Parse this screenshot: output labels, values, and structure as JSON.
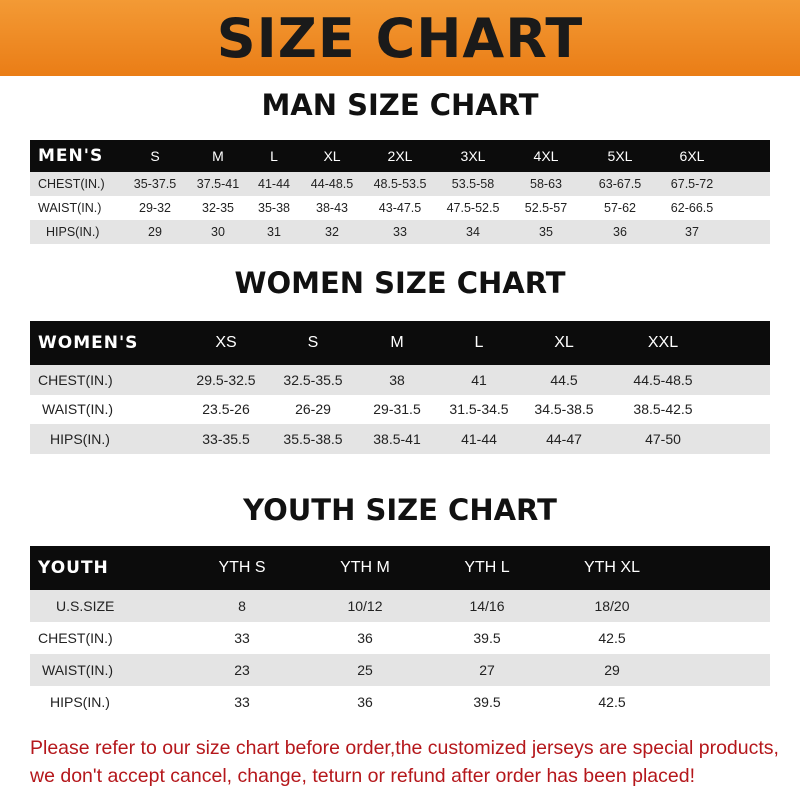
{
  "banner_title": "SIZE CHART",
  "men": {
    "title": "MAN SIZE CHART",
    "header": [
      "MEN'S",
      "S",
      "M",
      "L",
      "XL",
      "2XL",
      "3XL",
      "4XL",
      "5XL",
      "6XL"
    ],
    "rows": [
      [
        "CHEST(IN.)",
        "35-37.5",
        "37.5-41",
        "41-44",
        "44-48.5",
        "48.5-53.5",
        "53.5-58",
        "58-63",
        "63-67.5",
        "67.5-72"
      ],
      [
        "WAIST(IN.)",
        "29-32",
        "32-35",
        "35-38",
        "38-43",
        "43-47.5",
        "47.5-52.5",
        "52.5-57",
        "57-62",
        "62-66.5"
      ],
      [
        "HIPS(IN.)",
        "29",
        "30",
        "31",
        "32",
        "33",
        "34",
        "35",
        "36",
        "37"
      ]
    ]
  },
  "women": {
    "title": "WOMEN SIZE CHART",
    "header": [
      "WOMEN'S",
      "XS",
      "S",
      "M",
      "L",
      "XL",
      "XXL"
    ],
    "rows": [
      [
        "CHEST(IN.)",
        "29.5-32.5",
        "32.5-35.5",
        "38",
        "41",
        "44.5",
        "44.5-48.5"
      ],
      [
        "WAIST(IN.)",
        "23.5-26",
        "26-29",
        "29-31.5",
        "31.5-34.5",
        "34.5-38.5",
        "38.5-42.5"
      ],
      [
        "HIPS(IN.)",
        "33-35.5",
        "35.5-38.5",
        "38.5-41",
        "41-44",
        "44-47",
        "47-50"
      ]
    ]
  },
  "youth": {
    "title": "YOUTH SIZE CHART",
    "header": [
      "YOUTH",
      "YTH S",
      "YTH M",
      "YTH L",
      "YTH XL"
    ],
    "rows": [
      [
        "U.S.SIZE",
        "8",
        "10/12",
        "14/16",
        "18/20"
      ],
      [
        "CHEST(IN.)",
        "33",
        "36",
        "39.5",
        "42.5"
      ],
      [
        "WAIST(IN.)",
        "23",
        "25",
        "27",
        "29"
      ],
      [
        "HIPS(IN.)",
        "33",
        "36",
        "39.5",
        "42.5"
      ]
    ]
  },
  "note": [
    "Please refer to our size chart before order,the customized jerseys are special products,",
    "we don't accept cancel, change, teturn or refund after order has been placed!"
  ],
  "colors": {
    "banner": "#ee8a24",
    "header_row": "#0c0c0c",
    "stripe": "#e4e4e4",
    "note": "#b5171b"
  }
}
